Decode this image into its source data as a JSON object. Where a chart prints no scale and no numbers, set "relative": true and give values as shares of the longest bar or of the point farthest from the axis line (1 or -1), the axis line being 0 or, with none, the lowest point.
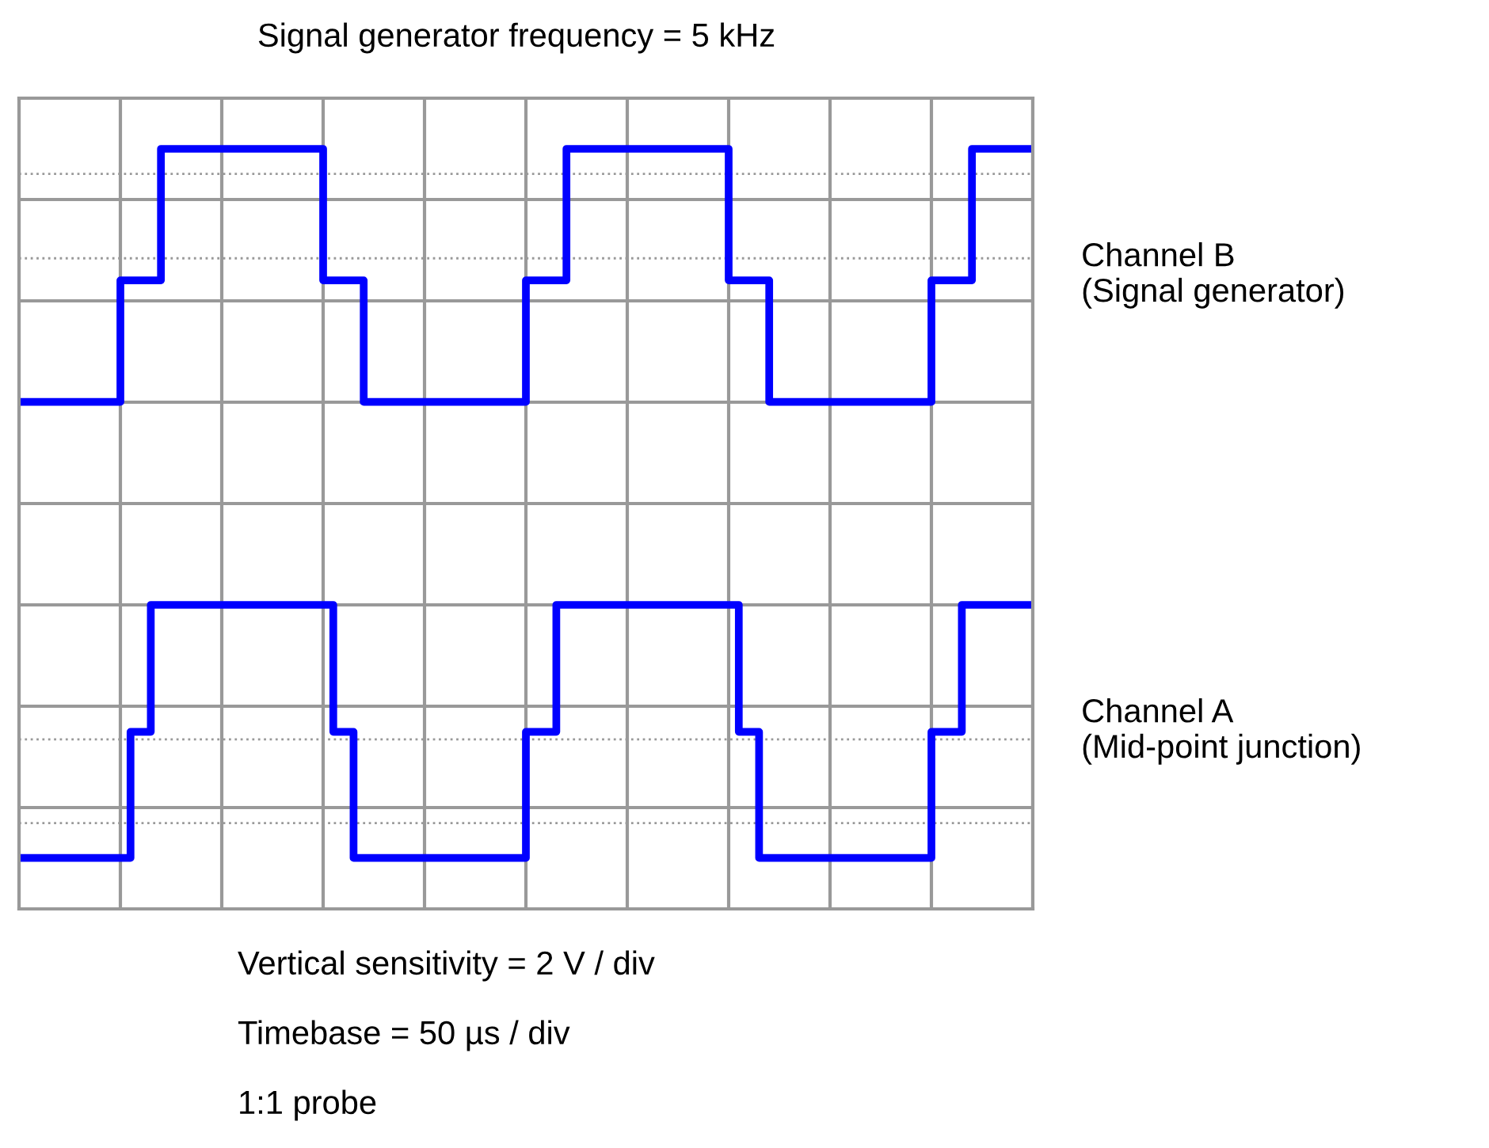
{
  "chart_data": {
    "type": "step",
    "title": "Signal generator frequency = 5 kHz",
    "relative": true,
    "categories": [
      null,
      null,
      null,
      null,
      null,
      null,
      null,
      null,
      null,
      null,
      null,
      null,
      null,
      null,
      null,
      null,
      null,
      null,
      null,
      null,
      null,
      null,
      null,
      null,
      null,
      null,
      null,
      null,
      null,
      null,
      null,
      null,
      null,
      null,
      null,
      null,
      null,
      null,
      null,
      null,
      null,
      null,
      null,
      null,
      null,
      null,
      null,
      null,
      null,
      null,
      null,
      null,
      null,
      null,
      null,
      null,
      null,
      null,
      null,
      null,
      null,
      null,
      null,
      null,
      null,
      null,
      null,
      null,
      null,
      null,
      null,
      null,
      null,
      null,
      null,
      null,
      null,
      null,
      null,
      null,
      null,
      null,
      null,
      null,
      null,
      null,
      null,
      null,
      null,
      null,
      null,
      null,
      null,
      null,
      null,
      null,
      null,
      null,
      null,
      null,
      null
    ],
    "grid": true,
    "line_style": "solid",
    "marker": "none",
    "series": [
      {
        "name": "Channel B\n(Signal generator)",
        "color": "#0000ff",
        "values": [
          0.667,
          0.667,
          0.667,
          0.667,
          0.667,
          0.667,
          0.667,
          0.667,
          0.667,
          0.667,
          0.827,
          0.827,
          0.827,
          0.827,
          1,
          1,
          1,
          1,
          1,
          1,
          1,
          1,
          1,
          1,
          1,
          1,
          1,
          1,
          1,
          1,
          0.827,
          0.827,
          0.827,
          0.827,
          0.667,
          0.667,
          0.667,
          0.667,
          0.667,
          0.667,
          0.667,
          0.667,
          0.667,
          0.667,
          0.667,
          0.667,
          0.667,
          0.667,
          0.667,
          0.667,
          0.827,
          0.827,
          0.827,
          0.827,
          1,
          1,
          1,
          1,
          1,
          1,
          1,
          1,
          1,
          1,
          1,
          1,
          1,
          1,
          1,
          1,
          0.827,
          0.827,
          0.827,
          0.827,
          0.667,
          0.667,
          0.667,
          0.667,
          0.667,
          0.667,
          0.667,
          0.667,
          0.667,
          0.667,
          0.667,
          0.667,
          0.667,
          0.667,
          0.667,
          0.667,
          0.827,
          0.827,
          0.827,
          0.827,
          1,
          1,
          1,
          1,
          1,
          1,
          1
        ]
      },
      {
        "name": "Channel A\n(Mid-point junction)",
        "color": "#0000ff",
        "values": [
          0.067,
          0.067,
          0.067,
          0.067,
          0.067,
          0.067,
          0.067,
          0.067,
          0.067,
          0.067,
          0.067,
          0.233,
          0.233,
          0.4,
          0.4,
          0.4,
          0.4,
          0.4,
          0.4,
          0.4,
          0.4,
          0.4,
          0.4,
          0.4,
          0.4,
          0.4,
          0.4,
          0.4,
          0.4,
          0.4,
          0.4,
          0.233,
          0.233,
          0.067,
          0.067,
          0.067,
          0.067,
          0.067,
          0.067,
          0.067,
          0.067,
          0.067,
          0.067,
          0.067,
          0.067,
          0.067,
          0.067,
          0.067,
          0.067,
          0.067,
          0.233,
          0.233,
          0.233,
          0.4,
          0.4,
          0.4,
          0.4,
          0.4,
          0.4,
          0.4,
          0.4,
          0.4,
          0.4,
          0.4,
          0.4,
          0.4,
          0.4,
          0.4,
          0.4,
          0.4,
          0.4,
          0.233,
          0.233,
          0.067,
          0.067,
          0.067,
          0.067,
          0.067,
          0.067,
          0.067,
          0.067,
          0.067,
          0.067,
          0.067,
          0.067,
          0.067,
          0.067,
          0.067,
          0.067,
          0.067,
          0.233,
          0.233,
          0.233,
          0.4,
          0.4,
          0.4,
          0.4,
          0.4,
          0.4,
          0.4,
          0.4
        ]
      }
    ],
    "ref_lines": [
      {
        "axis": "y",
        "value": 0.967,
        "color": "#999999",
        "line_style": "dotted"
      },
      {
        "axis": "y",
        "value": 0.856,
        "color": "#999999",
        "line_style": "dotted"
      },
      {
        "axis": "y",
        "value": 0.223,
        "color": "#999999",
        "line_style": "dotted"
      },
      {
        "axis": "y",
        "value": 0.113,
        "color": "#999999",
        "line_style": "dotted"
      }
    ],
    "annotations": [
      "Vertical sensitivity = 2 V / div",
      "Timebase = 50 µs / div",
      "1:1 probe"
    ]
  }
}
